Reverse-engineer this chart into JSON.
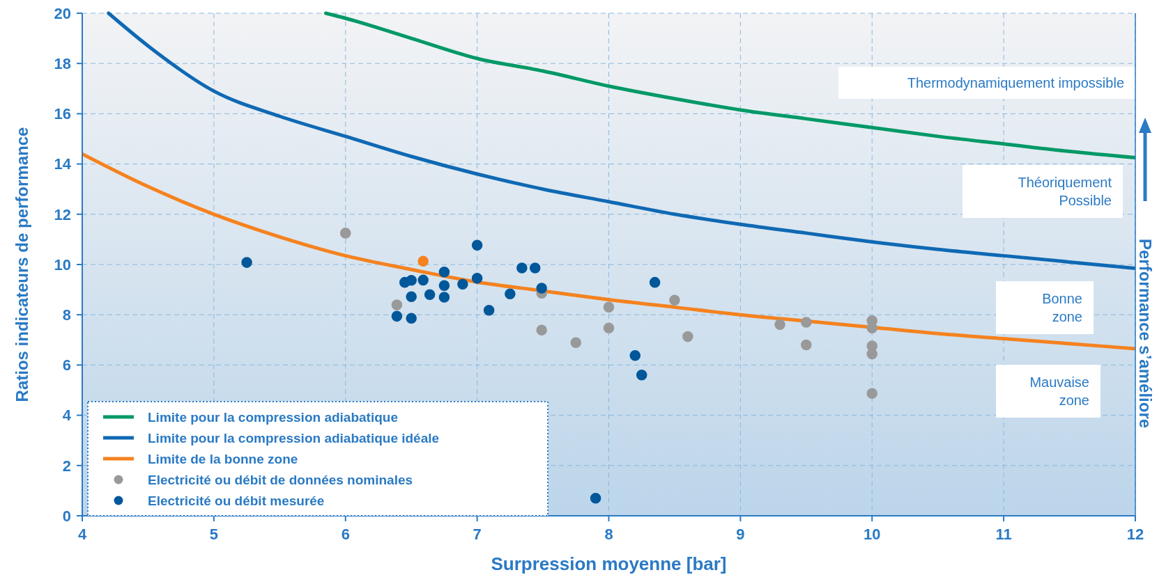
{
  "chart_data": {
    "type": "line",
    "xlabel": "Surpression moyenne [bar]",
    "ylabel": "Ratios indicateurs de performance",
    "xlim": [
      4,
      12
    ],
    "xticks": [
      4,
      5,
      6,
      7,
      8,
      9,
      10,
      11,
      12
    ],
    "ylim": [
      0,
      20
    ],
    "yticks": [
      0,
      2,
      4,
      6,
      8,
      10,
      12,
      14,
      16,
      18,
      20
    ],
    "grid": true,
    "legend": "bottom left",
    "annotations": [
      "Thermodynamiquement impossible",
      "Théoriquement\nPossible",
      "Bonne\nzone",
      "Mauvaise\nzone",
      "Performance s’améliore"
    ],
    "series": [
      {
        "name": "Limite pour la compression adiabatique",
        "color": "#009966",
        "marker": "none",
        "x": [
          5.85,
          6,
          6.5,
          7,
          7.5,
          8,
          8.5,
          9,
          9.5,
          10,
          10.5,
          11,
          11.5,
          12
        ],
        "values": [
          20,
          19.8,
          19,
          18.2,
          17.7,
          17.1,
          16.6,
          16.15,
          15.8,
          15.45,
          15.1,
          14.8,
          14.5,
          14.25
        ]
      },
      {
        "name": "Limite pour la compression adiabatique idéale",
        "color": "#0f69b4",
        "marker": "none",
        "x": [
          4.2,
          4.5,
          5,
          5.5,
          6,
          6.5,
          7,
          7.5,
          8,
          8.5,
          9,
          9.5,
          10,
          10.5,
          11,
          11.5,
          12
        ],
        "values": [
          20,
          18.7,
          16.9,
          15.9,
          15.1,
          14.3,
          13.6,
          13,
          12.5,
          12,
          11.6,
          11.25,
          10.9,
          10.6,
          10.35,
          10.1,
          9.85
        ]
      },
      {
        "name": "Limite de la bonne zone",
        "color": "#f5821f",
        "marker": "none",
        "x": [
          4,
          4.5,
          5,
          5.5,
          6,
          6.5,
          7,
          7.5,
          8,
          8.5,
          9,
          9.5,
          10,
          10.5,
          11,
          11.5,
          12
        ],
        "values": [
          14.4,
          13.1,
          12,
          11.1,
          10.35,
          9.8,
          9.3,
          8.95,
          8.6,
          8.3,
          8,
          7.75,
          7.5,
          7.25,
          7.05,
          6.85,
          6.65
        ]
      },
      {
        "name": "Electricité ou débit de données nominales",
        "type": "scatter",
        "color": "#999999",
        "marker": "circle",
        "x": [
          6,
          6.39,
          7.49,
          7.49,
          7.75,
          8,
          8,
          8.5,
          8.6,
          9.3,
          9.5,
          9.5,
          10,
          10,
          10,
          10,
          10
        ],
        "values": [
          11.25,
          8.39,
          8.86,
          7.39,
          6.89,
          8.3,
          7.47,
          8.58,
          7.13,
          7.61,
          7.7,
          6.8,
          7.76,
          7.47,
          6.76,
          6.44,
          4.87
        ]
      },
      {
        "name": "Electricité ou débit mesurée",
        "type": "scatter",
        "color": "#00579a",
        "marker": "circle",
        "x": [
          5.25,
          7,
          6.45,
          6.5,
          6.59,
          6.75,
          6.75,
          6.5,
          6.64,
          6.75,
          6.89,
          7,
          6.39,
          6.5,
          7.09,
          7.25,
          7.34,
          7.44,
          7.49,
          8.2,
          8.25,
          8.35,
          7.9
        ],
        "values": [
          10.08,
          10.77,
          9.29,
          9.37,
          9.38,
          9.7,
          9.16,
          8.72,
          8.8,
          8.7,
          9.22,
          9.45,
          7.94,
          7.86,
          8.18,
          8.83,
          9.86,
          9.86,
          9.06,
          6.38,
          5.6,
          9.29,
          0.7
        ]
      },
      {
        "type": "scatter",
        "color": "#f5821f",
        "marker": "circle",
        "x": [
          6.59
        ],
        "values": [
          10.13
        ]
      }
    ]
  }
}
